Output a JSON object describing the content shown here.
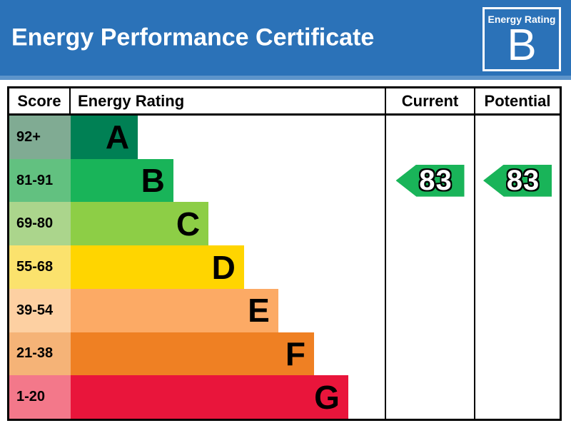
{
  "header": {
    "title": "Energy Performance Certificate",
    "badge_label": "Energy Rating",
    "badge_value": "B"
  },
  "colors": {
    "banner_blue": "#2b72b8",
    "banner_strip": "#5d94ca",
    "border_black": "#000000",
    "arrow_green": "#19b459"
  },
  "table": {
    "columns": {
      "score": "Score",
      "rating": "Energy Rating",
      "current": "Current",
      "potential": "Potential"
    },
    "bands": [
      {
        "letter": "A",
        "score": "92+",
        "bar_color": "#008054",
        "tint_color": "#80ab93",
        "bar_width_pct": 21.4
      },
      {
        "letter": "B",
        "score": "81-91",
        "bar_color": "#19b459",
        "tint_color": "#62c180",
        "bar_width_pct": 32.7
      },
      {
        "letter": "C",
        "score": "69-80",
        "bar_color": "#8dce46",
        "tint_color": "#abd58c",
        "bar_width_pct": 43.9
      },
      {
        "letter": "D",
        "score": "55-68",
        "bar_color": "#ffd500",
        "tint_color": "#fbe26d",
        "bar_width_pct": 55.2
      },
      {
        "letter": "E",
        "score": "39-54",
        "bar_color": "#fcaa65",
        "tint_color": "#fdd0a2",
        "bar_width_pct": 66.1
      },
      {
        "letter": "F",
        "score": "21-38",
        "bar_color": "#ef8023",
        "tint_color": "#f5b377",
        "bar_width_pct": 77.5
      },
      {
        "letter": "G",
        "score": "1-20",
        "bar_color": "#e9153b",
        "tint_color": "#f3788a",
        "bar_width_pct": 88.4
      }
    ]
  },
  "ratings": {
    "current": {
      "value": "83",
      "band": "B",
      "color": "#19b459"
    },
    "potential": {
      "value": "83",
      "band": "B",
      "color": "#19b459"
    }
  },
  "chart_data": {
    "type": "bar",
    "title": "Energy Performance Certificate",
    "categories": [
      "A",
      "B",
      "C",
      "D",
      "E",
      "F",
      "G"
    ],
    "band_score_ranges": [
      "92+",
      "81-91",
      "69-80",
      "55-68",
      "39-54",
      "21-38",
      "1-20"
    ],
    "band_colors": [
      "#008054",
      "#19b459",
      "#8dce46",
      "#ffd500",
      "#fcaa65",
      "#ef8023",
      "#e9153b"
    ],
    "bar_relative_widths_pct": [
      21.4,
      32.7,
      43.9,
      55.2,
      66.1,
      77.5,
      88.4
    ],
    "current_rating": 83,
    "current_band": "B",
    "potential_rating": 83,
    "potential_band": "B",
    "legend_position": "none",
    "grid": false
  }
}
